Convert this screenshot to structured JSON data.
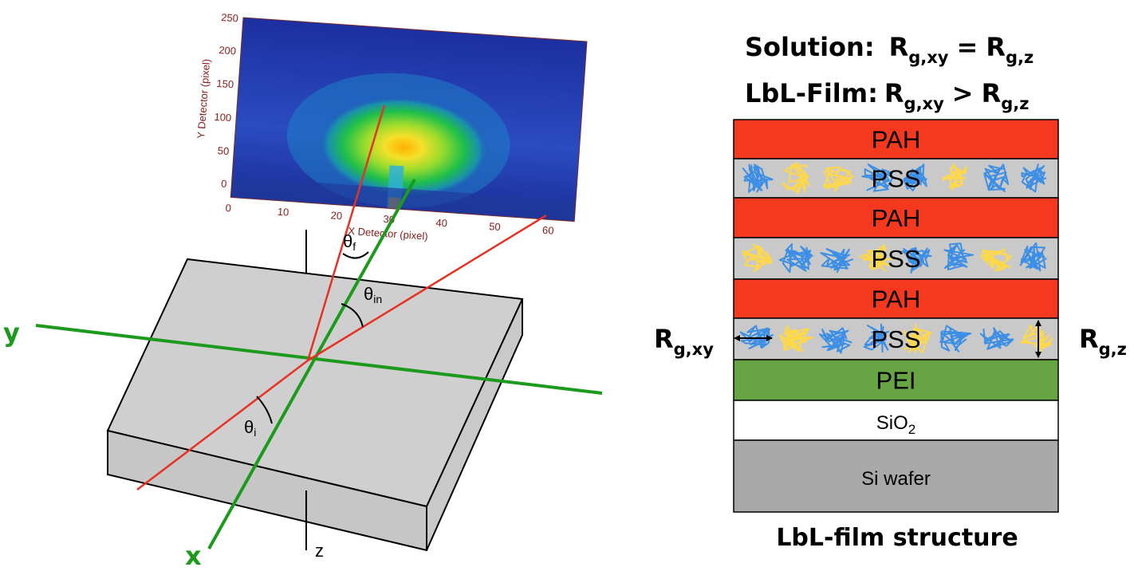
{
  "left": {
    "axis_labels": {
      "x": "x",
      "y": "y",
      "z": "z"
    },
    "angles": {
      "theta_f": "θ",
      "theta_f_sub": "f",
      "theta_in": "θ",
      "theta_in_sub": "in",
      "theta_i": "θ",
      "theta_i_sub": "i"
    },
    "detector": {
      "x_axis_label": "X Detector (pixel)",
      "y_axis_label": "Y Detector (pixel)",
      "x_ticks": [
        "0",
        "10",
        "20",
        "30",
        "40",
        "50",
        "60"
      ],
      "y_ticks": [
        "0",
        "50",
        "100",
        "150",
        "200",
        "250"
      ]
    },
    "colors": {
      "beam": "#e53222",
      "axis": "#1c9a1c",
      "substrate": "#cfcfcf"
    }
  },
  "right": {
    "solution_line": {
      "label": "Solution:",
      "a": "R",
      "a_sub": "g,xy",
      "op": "=",
      "b": "R",
      "b_sub": "g,z"
    },
    "film_line": {
      "label": "LbL-Film:",
      "a": "R",
      "a_sub": "g,xy",
      "op": ">",
      "b": "R",
      "b_sub": "g,z"
    },
    "layers": [
      {
        "name": "PAH",
        "color": "#f4391f"
      },
      {
        "name": "PSS",
        "color": "#c9c9c9"
      },
      {
        "name": "PAH",
        "color": "#f4391f"
      },
      {
        "name": "PSS",
        "color": "#c9c9c9"
      },
      {
        "name": "PAH",
        "color": "#f4391f"
      },
      {
        "name": "PSS",
        "color": "#c9c9c9"
      },
      {
        "name": "PEI",
        "color": "#67a443"
      },
      {
        "name": "SiO",
        "sub": "2",
        "color": "#ffffff"
      },
      {
        "name": "Si wafer",
        "color": "#a9a9a9"
      }
    ],
    "rg_left": {
      "main": "R",
      "sub": "g,xy"
    },
    "rg_right": {
      "main": "R",
      "sub": "g,z"
    },
    "caption": "LbL-film structure",
    "coil_colors": {
      "yellow": "#ffd84a",
      "blue": "#3d8fe6"
    }
  }
}
